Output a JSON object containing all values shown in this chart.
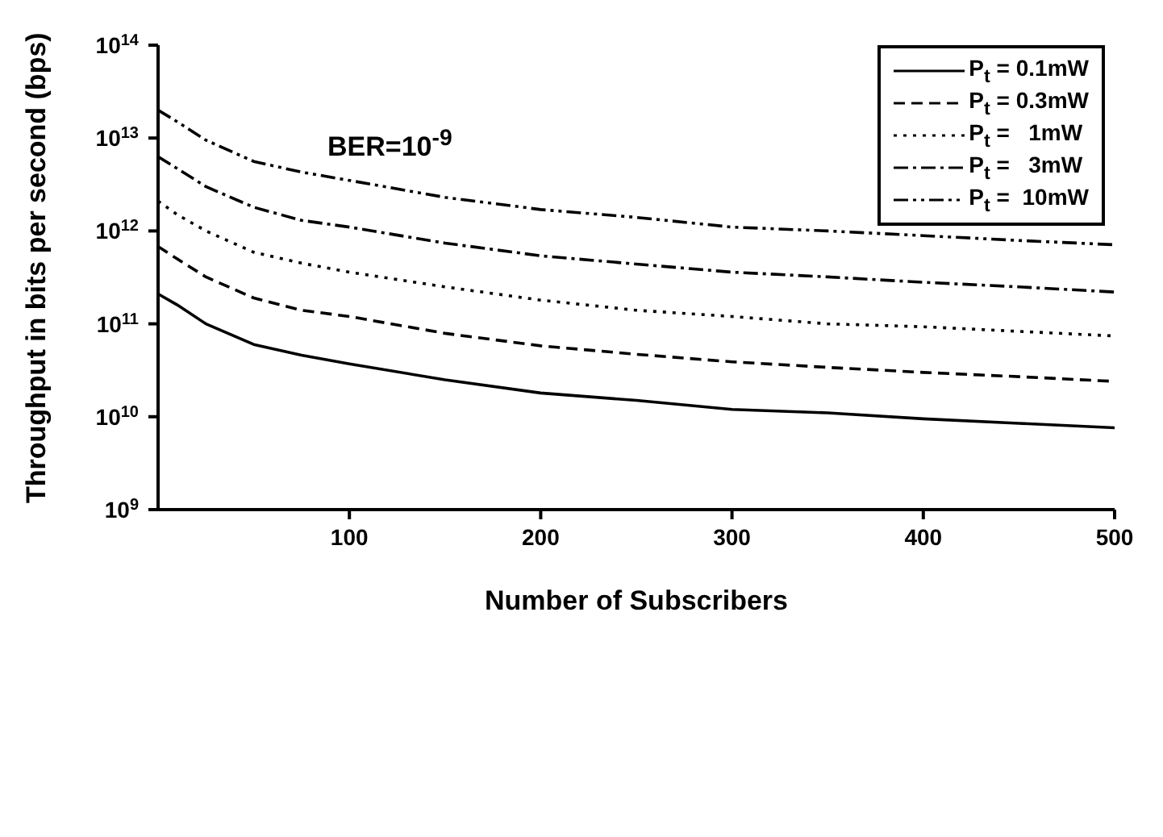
{
  "chart_data": {
    "type": "line",
    "xlabel": "Number of Subscribers",
    "ylabel": "Throughput in bits per second (bps)",
    "annotations": [
      "BER=10$^{-9}$"
    ],
    "x": [
      0,
      10,
      25,
      50,
      75,
      100,
      150,
      200,
      250,
      300,
      350,
      400,
      450,
      500
    ],
    "series": [
      {
        "name": "P$_{t}$ = 0.1mW",
        "color": "#000000",
        "line_style": "solid",
        "values": [
          210000000000.0,
          160000000000.0,
          100000000000.0,
          60000000000.0,
          46000000000.0,
          37000000000.0,
          25000000000.0,
          18000000000.0,
          15000000000.0,
          12000000000.0,
          11000000000.0,
          9500000000.0,
          8500000000.0,
          7600000000.0
        ]
      },
      {
        "name": "P$_{t}$ = 0.3mW",
        "color": "#000000",
        "line_style": "dashed",
        "values": [
          680000000000.0,
          500000000000.0,
          320000000000.0,
          190000000000.0,
          140000000000.0,
          120000000000.0,
          79000000000.0,
          58000000000.0,
          47000000000.0,
          39000000000.0,
          34000000000.0,
          30000000000.0,
          27000000000.0,
          24000000000.0
        ]
      },
      {
        "name": "P$_{t}$ =   1mW",
        "color": "#000000",
        "line_style": "dotted",
        "values": [
          2100000000000.0,
          1500000000000.0,
          1000000000000.0,
          590000000000.0,
          450000000000.0,
          360000000000.0,
          250000000000.0,
          180000000000.0,
          140000000000.0,
          120000000000.0,
          100000000000.0,
          93000000000.0,
          83000000000.0,
          74000000000.0
        ]
      },
      {
        "name": "P$_{t}$ =   3mW",
        "color": "#000000",
        "line_style": "dashdot",
        "values": [
          6300000000000.0,
          4700000000000.0,
          3000000000000.0,
          1800000000000.0,
          1300000000000.0,
          1100000000000.0,
          740000000000.0,
          540000000000.0,
          440000000000.0,
          360000000000.0,
          320000000000.0,
          280000000000.0,
          250000000000.0,
          220000000000.0
        ]
      },
      {
        "name": "P$_{t}$ =  10mW",
        "color": "#000000",
        "line_style": "dashdotdot",
        "values": [
          20000000000000.0,
          15000000000000.0,
          9500000000000.0,
          5600000000000.0,
          4300000000000.0,
          3500000000000.0,
          2300000000000.0,
          1700000000000.0,
          1400000000000.0,
          1100000000000.0,
          1000000000000.0,
          890000000000.0,
          790000000000.0,
          710000000000.0
        ]
      }
    ],
    "xlim": [
      0,
      500
    ],
    "xticks": [
      100,
      200,
      300,
      400,
      500
    ],
    "ylim": [
      1000000000.0,
      100000000000000.0
    ],
    "log": "y",
    "yticks": [
      {
        "value": 1000000000.0,
        "label": "10$^{9}$"
      },
      {
        "value": 10000000000.0,
        "label": "10$^{10}$"
      },
      {
        "value": 100000000000.0,
        "label": "10$^{11}$"
      },
      {
        "value": 1000000000000.0,
        "label": "10$^{12}$"
      },
      {
        "value": 10000000000000.0,
        "label": "10$^{13}$"
      },
      {
        "value": 100000000000000.0,
        "label": "10$^{14}$"
      }
    ],
    "grid": false,
    "legend": "top right",
    "marker": "none"
  }
}
